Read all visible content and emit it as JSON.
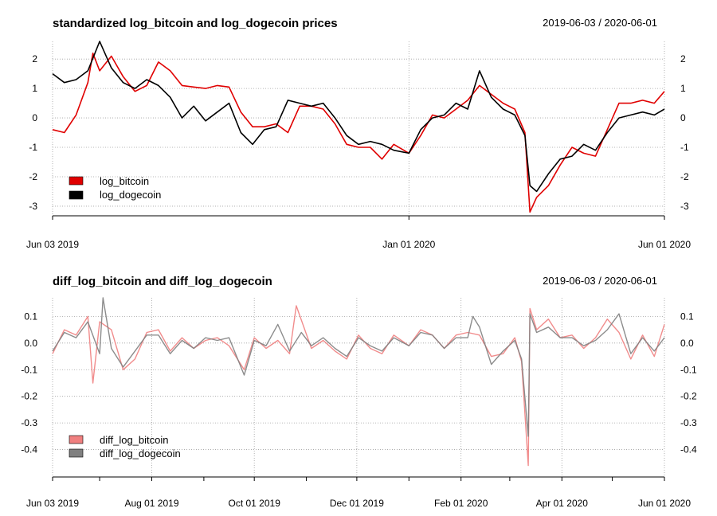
{
  "chart_data": [
    {
      "type": "line",
      "title": "standardized log_bitcoin and log_dogecoin prices",
      "date_range": "2019-06-03 / 2020-06-01",
      "ylim": [
        -3.3,
        2.6
      ],
      "y_ticks": [
        "2",
        "1",
        "0",
        "-1",
        "-2",
        "-3"
      ],
      "x_ticks": [
        "Jun 03 2019",
        "Jan 01 2020",
        "Jun 01 2020"
      ],
      "legend_position": "bottom-left",
      "grid": true,
      "series": [
        {
          "name": "log_bitcoin",
          "color": "#e00000",
          "points": [
            [
              "2019-06-03",
              -0.4
            ],
            [
              "2019-06-10",
              -0.5
            ],
            [
              "2019-06-17",
              0.1
            ],
            [
              "2019-06-24",
              1.2
            ],
            [
              "2019-06-27",
              2.2
            ],
            [
              "2019-07-01",
              1.6
            ],
            [
              "2019-07-08",
              2.1
            ],
            [
              "2019-07-15",
              1.4
            ],
            [
              "2019-07-22",
              0.9
            ],
            [
              "2019-07-29",
              1.1
            ],
            [
              "2019-08-05",
              1.9
            ],
            [
              "2019-08-12",
              1.6
            ],
            [
              "2019-08-19",
              1.1
            ],
            [
              "2019-08-26",
              1.05
            ],
            [
              "2019-09-02",
              1.0
            ],
            [
              "2019-09-09",
              1.1
            ],
            [
              "2019-09-16",
              1.05
            ],
            [
              "2019-09-23",
              0.2
            ],
            [
              "2019-09-30",
              -0.3
            ],
            [
              "2019-10-07",
              -0.3
            ],
            [
              "2019-10-14",
              -0.2
            ],
            [
              "2019-10-21",
              -0.5
            ],
            [
              "2019-10-28",
              0.4
            ],
            [
              "2019-11-04",
              0.4
            ],
            [
              "2019-11-11",
              0.3
            ],
            [
              "2019-11-18",
              -0.2
            ],
            [
              "2019-11-25",
              -0.9
            ],
            [
              "2019-12-02",
              -1.0
            ],
            [
              "2019-12-09",
              -1.0
            ],
            [
              "2019-12-16",
              -1.4
            ],
            [
              "2019-12-23",
              -0.9
            ],
            [
              "2020-01-01",
              -1.2
            ],
            [
              "2020-01-08",
              -0.6
            ],
            [
              "2020-01-15",
              0.1
            ],
            [
              "2020-01-22",
              0.0
            ],
            [
              "2020-01-29",
              0.3
            ],
            [
              "2020-02-05",
              0.6
            ],
            [
              "2020-02-12",
              1.1
            ],
            [
              "2020-02-19",
              0.8
            ],
            [
              "2020-02-26",
              0.5
            ],
            [
              "2020-03-04",
              0.3
            ],
            [
              "2020-03-10",
              -0.5
            ],
            [
              "2020-03-13",
              -3.2
            ],
            [
              "2020-03-17",
              -2.7
            ],
            [
              "2020-03-24",
              -2.3
            ],
            [
              "2020-03-31",
              -1.6
            ],
            [
              "2020-04-07",
              -1.0
            ],
            [
              "2020-04-14",
              -1.2
            ],
            [
              "2020-04-21",
              -1.3
            ],
            [
              "2020-04-28",
              -0.4
            ],
            [
              "2020-05-05",
              0.5
            ],
            [
              "2020-05-12",
              0.5
            ],
            [
              "2020-05-19",
              0.6
            ],
            [
              "2020-05-26",
              0.5
            ],
            [
              "2020-06-01",
              0.9
            ]
          ]
        },
        {
          "name": "log_dogecoin",
          "color": "#000000",
          "points": [
            [
              "2019-06-03",
              1.5
            ],
            [
              "2019-06-10",
              1.2
            ],
            [
              "2019-06-17",
              1.3
            ],
            [
              "2019-06-24",
              1.6
            ],
            [
              "2019-07-01",
              2.6
            ],
            [
              "2019-07-08",
              1.7
            ],
            [
              "2019-07-15",
              1.2
            ],
            [
              "2019-07-22",
              1.0
            ],
            [
              "2019-07-29",
              1.3
            ],
            [
              "2019-08-05",
              1.1
            ],
            [
              "2019-08-12",
              0.7
            ],
            [
              "2019-08-19",
              0.0
            ],
            [
              "2019-08-26",
              0.4
            ],
            [
              "2019-09-02",
              -0.1
            ],
            [
              "2019-09-09",
              0.2
            ],
            [
              "2019-09-16",
              0.5
            ],
            [
              "2019-09-23",
              -0.5
            ],
            [
              "2019-09-30",
              -0.9
            ],
            [
              "2019-10-07",
              -0.4
            ],
            [
              "2019-10-14",
              -0.3
            ],
            [
              "2019-10-21",
              0.6
            ],
            [
              "2019-10-28",
              0.5
            ],
            [
              "2019-11-04",
              0.4
            ],
            [
              "2019-11-11",
              0.5
            ],
            [
              "2019-11-18",
              0.0
            ],
            [
              "2019-11-25",
              -0.6
            ],
            [
              "2019-12-02",
              -0.9
            ],
            [
              "2019-12-09",
              -0.8
            ],
            [
              "2019-12-16",
              -0.9
            ],
            [
              "2019-12-23",
              -1.1
            ],
            [
              "2020-01-01",
              -1.2
            ],
            [
              "2020-01-08",
              -0.4
            ],
            [
              "2020-01-15",
              0.0
            ],
            [
              "2020-01-22",
              0.1
            ],
            [
              "2020-01-29",
              0.5
            ],
            [
              "2020-02-05",
              0.3
            ],
            [
              "2020-02-12",
              1.6
            ],
            [
              "2020-02-19",
              0.7
            ],
            [
              "2020-02-26",
              0.3
            ],
            [
              "2020-03-04",
              0.1
            ],
            [
              "2020-03-10",
              -0.6
            ],
            [
              "2020-03-13",
              -2.3
            ],
            [
              "2020-03-17",
              -2.5
            ],
            [
              "2020-03-24",
              -1.9
            ],
            [
              "2020-03-31",
              -1.4
            ],
            [
              "2020-04-07",
              -1.3
            ],
            [
              "2020-04-14",
              -0.9
            ],
            [
              "2020-04-21",
              -1.1
            ],
            [
              "2020-04-28",
              -0.5
            ],
            [
              "2020-05-05",
              0.0
            ],
            [
              "2020-05-12",
              0.1
            ],
            [
              "2020-05-19",
              0.2
            ],
            [
              "2020-05-26",
              0.1
            ],
            [
              "2020-06-01",
              0.3
            ]
          ]
        }
      ]
    },
    {
      "type": "line",
      "title": "diff_log_bitcoin and diff_log_dogecoin",
      "date_range": "2019-06-03 / 2020-06-01",
      "ylim": [
        -0.5,
        0.17
      ],
      "y_ticks": [
        "0.1",
        "0.0",
        "-0.1",
        "-0.2",
        "-0.3",
        "-0.4"
      ],
      "x_ticks": [
        "Jun 03 2019",
        "Aug 01 2019",
        "Oct 01 2019",
        "Dec 01 2019",
        "Feb 01 2020",
        "Apr 01 2020",
        "Jun 01 2020"
      ],
      "legend_position": "bottom-left",
      "grid": true,
      "series": [
        {
          "name": "diff_log_bitcoin",
          "color": "#f08080",
          "points": [
            [
              "2019-06-03",
              -0.04
            ],
            [
              "2019-06-10",
              0.05
            ],
            [
              "2019-06-17",
              0.03
            ],
            [
              "2019-06-24",
              0.1
            ],
            [
              "2019-06-27",
              -0.15
            ],
            [
              "2019-07-01",
              0.08
            ],
            [
              "2019-07-08",
              0.05
            ],
            [
              "2019-07-15",
              -0.1
            ],
            [
              "2019-07-22",
              -0.06
            ],
            [
              "2019-07-29",
              0.04
            ],
            [
              "2019-08-05",
              0.05
            ],
            [
              "2019-08-12",
              -0.03
            ],
            [
              "2019-08-19",
              0.02
            ],
            [
              "2019-08-26",
              -0.02
            ],
            [
              "2019-09-02",
              0.01
            ],
            [
              "2019-09-09",
              0.02
            ],
            [
              "2019-09-16",
              -0.01
            ],
            [
              "2019-09-25",
              -0.1
            ],
            [
              "2019-10-01",
              0.02
            ],
            [
              "2019-10-08",
              -0.02
            ],
            [
              "2019-10-15",
              0.01
            ],
            [
              "2019-10-22",
              -0.04
            ],
            [
              "2019-10-26",
              0.14
            ],
            [
              "2019-11-04",
              -0.02
            ],
            [
              "2019-11-11",
              0.01
            ],
            [
              "2019-11-18",
              -0.03
            ],
            [
              "2019-11-25",
              -0.06
            ],
            [
              "2019-12-02",
              0.03
            ],
            [
              "2019-12-09",
              -0.02
            ],
            [
              "2019-12-16",
              -0.04
            ],
            [
              "2019-12-23",
              0.03
            ],
            [
              "2020-01-01",
              -0.01
            ],
            [
              "2020-01-08",
              0.05
            ],
            [
              "2020-01-15",
              0.03
            ],
            [
              "2020-01-22",
              -0.02
            ],
            [
              "2020-01-29",
              0.03
            ],
            [
              "2020-02-05",
              0.04
            ],
            [
              "2020-02-12",
              0.03
            ],
            [
              "2020-02-19",
              -0.05
            ],
            [
              "2020-02-26",
              -0.04
            ],
            [
              "2020-03-04",
              0.02
            ],
            [
              "2020-03-08",
              -0.07
            ],
            [
              "2020-03-12",
              -0.46
            ],
            [
              "2020-03-13",
              0.13
            ],
            [
              "2020-03-17",
              0.05
            ],
            [
              "2020-03-24",
              0.09
            ],
            [
              "2020-03-31",
              0.02
            ],
            [
              "2020-04-07",
              0.03
            ],
            [
              "2020-04-14",
              -0.02
            ],
            [
              "2020-04-21",
              0.02
            ],
            [
              "2020-04-28",
              0.09
            ],
            [
              "2020-05-05",
              0.04
            ],
            [
              "2020-05-12",
              -0.06
            ],
            [
              "2020-05-19",
              0.03
            ],
            [
              "2020-05-26",
              -0.05
            ],
            [
              "2020-06-01",
              0.07
            ]
          ]
        },
        {
          "name": "diff_log_dogecoin",
          "color": "#808080",
          "points": [
            [
              "2019-06-03",
              -0.03
            ],
            [
              "2019-06-10",
              0.04
            ],
            [
              "2019-06-17",
              0.02
            ],
            [
              "2019-06-24",
              0.08
            ],
            [
              "2019-07-01",
              -0.04
            ],
            [
              "2019-07-03",
              0.17
            ],
            [
              "2019-07-08",
              -0.02
            ],
            [
              "2019-07-15",
              -0.09
            ],
            [
              "2019-07-22",
              -0.03
            ],
            [
              "2019-07-29",
              0.03
            ],
            [
              "2019-08-05",
              0.03
            ],
            [
              "2019-08-12",
              -0.04
            ],
            [
              "2019-08-19",
              0.01
            ],
            [
              "2019-08-26",
              -0.02
            ],
            [
              "2019-09-02",
              0.02
            ],
            [
              "2019-09-09",
              0.01
            ],
            [
              "2019-09-16",
              0.02
            ],
            [
              "2019-09-25",
              -0.12
            ],
            [
              "2019-10-01",
              0.01
            ],
            [
              "2019-10-08",
              -0.01
            ],
            [
              "2019-10-15",
              0.07
            ],
            [
              "2019-10-22",
              -0.03
            ],
            [
              "2019-10-29",
              0.04
            ],
            [
              "2019-11-04",
              -0.01
            ],
            [
              "2019-11-11",
              0.02
            ],
            [
              "2019-11-18",
              -0.02
            ],
            [
              "2019-11-25",
              -0.05
            ],
            [
              "2019-12-02",
              0.02
            ],
            [
              "2019-12-09",
              -0.01
            ],
            [
              "2019-12-16",
              -0.03
            ],
            [
              "2019-12-23",
              0.02
            ],
            [
              "2020-01-01",
              -0.01
            ],
            [
              "2020-01-08",
              0.04
            ],
            [
              "2020-01-15",
              0.03
            ],
            [
              "2020-01-22",
              -0.02
            ],
            [
              "2020-01-29",
              0.02
            ],
            [
              "2020-02-05",
              0.02
            ],
            [
              "2020-02-08",
              0.1
            ],
            [
              "2020-02-12",
              0.06
            ],
            [
              "2020-02-19",
              -0.08
            ],
            [
              "2020-02-26",
              -0.03
            ],
            [
              "2020-03-04",
              0.01
            ],
            [
              "2020-03-08",
              -0.06
            ],
            [
              "2020-03-12",
              -0.35
            ],
            [
              "2020-03-13",
              0.11
            ],
            [
              "2020-03-17",
              0.04
            ],
            [
              "2020-03-24",
              0.06
            ],
            [
              "2020-03-31",
              0.02
            ],
            [
              "2020-04-07",
              0.02
            ],
            [
              "2020-04-14",
              -0.01
            ],
            [
              "2020-04-21",
              0.01
            ],
            [
              "2020-04-28",
              0.05
            ],
            [
              "2020-05-05",
              0.11
            ],
            [
              "2020-05-12",
              -0.04
            ],
            [
              "2020-05-19",
              0.02
            ],
            [
              "2020-05-26",
              -0.03
            ],
            [
              "2020-06-01",
              0.02
            ]
          ]
        }
      ]
    }
  ]
}
